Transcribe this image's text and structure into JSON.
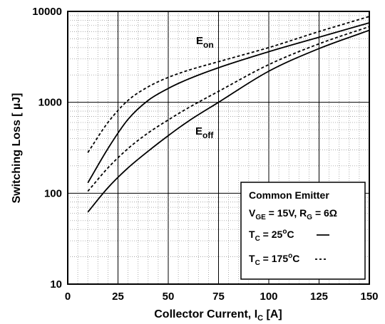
{
  "chart_data": {
    "type": "line",
    "xlabel": {
      "main": "Collector Current, I",
      "sub": "C",
      "unit": " [A]"
    },
    "ylabel": "Switching Loss [ µJ]",
    "x_ticks": [
      "0",
      "25",
      "50",
      "75",
      "100",
      "125",
      "150"
    ],
    "y_ticks": [
      "10",
      "100",
      "1000",
      "10000"
    ],
    "xlim": [
      0,
      150
    ],
    "ylim": [
      10,
      10000
    ],
    "y_scale": "log",
    "grid": true,
    "annotations": {
      "eon": {
        "main": "E",
        "sub": "on"
      },
      "eoff": {
        "main": "E",
        "sub": "off"
      }
    },
    "legend": {
      "title": "Common Emitter",
      "conditions": {
        "vge_main": "V",
        "vge_sub": "GE",
        "vge_val": " = 15V, R",
        "rg_sub": "G",
        "rg_val": " = 6Ω"
      },
      "entry_25": {
        "main": "T",
        "sub": "C",
        "val": " = 25",
        "sup": "o",
        "unit": "C"
      },
      "entry_175": {
        "main": "T",
        "sub": "C",
        "val": " = 175",
        "sup": "o",
        "unit": "C"
      },
      "placement": "bottom-right"
    },
    "series": [
      {
        "curve": "Eon",
        "temp": "25",
        "style": "solid",
        "x": [
          10,
          20,
          30,
          40,
          50,
          60,
          75,
          100,
          125,
          150
        ],
        "y": [
          130,
          310,
          650,
          1050,
          1420,
          1800,
          2400,
          3600,
          5200,
          7500
        ]
      },
      {
        "curve": "Eon",
        "temp": "175",
        "style": "dashed",
        "x": [
          10,
          20,
          30,
          40,
          50,
          60,
          75,
          100,
          125,
          150
        ],
        "y": [
          280,
          600,
          1050,
          1480,
          1880,
          2250,
          2800,
          4000,
          6000,
          8800
        ]
      },
      {
        "curve": "Eoff",
        "temp": "25",
        "style": "solid",
        "x": [
          10,
          20,
          30,
          40,
          50,
          60,
          75,
          100,
          125,
          150
        ],
        "y": [
          62,
          115,
          190,
          290,
          430,
          620,
          1000,
          2200,
          3900,
          6200
        ]
      },
      {
        "curve": "Eoff",
        "temp": "175",
        "style": "dashed",
        "x": [
          10,
          20,
          30,
          40,
          50,
          60,
          75,
          100,
          125,
          150
        ],
        "y": [
          105,
          190,
          310,
          460,
          640,
          870,
          1320,
          2600,
          4400,
          6800
        ]
      }
    ]
  }
}
